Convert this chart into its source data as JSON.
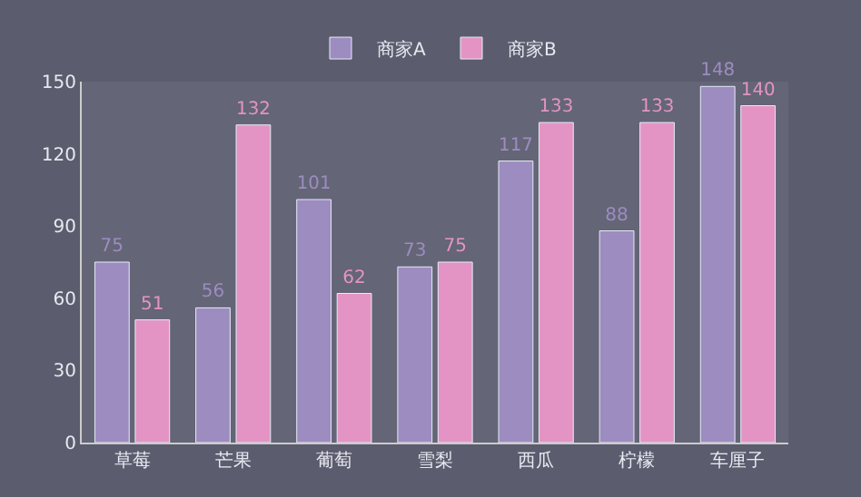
{
  "chart_data": {
    "type": "bar",
    "categories": [
      "草莓",
      "芒果",
      "葡萄",
      "雪梨",
      "西瓜",
      "柠檬",
      "车厘子"
    ],
    "series": [
      {
        "name": "商家A",
        "color": "#9d8cc0",
        "values": [
          75,
          56,
          101,
          73,
          117,
          88,
          148
        ]
      },
      {
        "name": "商家B",
        "color": "#e394c4",
        "values": [
          51,
          132,
          62,
          75,
          133,
          133,
          140
        ]
      }
    ],
    "ylim": [
      0,
      150
    ],
    "yticks": [
      0,
      30,
      60,
      90,
      120,
      150
    ],
    "grid": false,
    "legend": "top",
    "data_labels": true
  }
}
